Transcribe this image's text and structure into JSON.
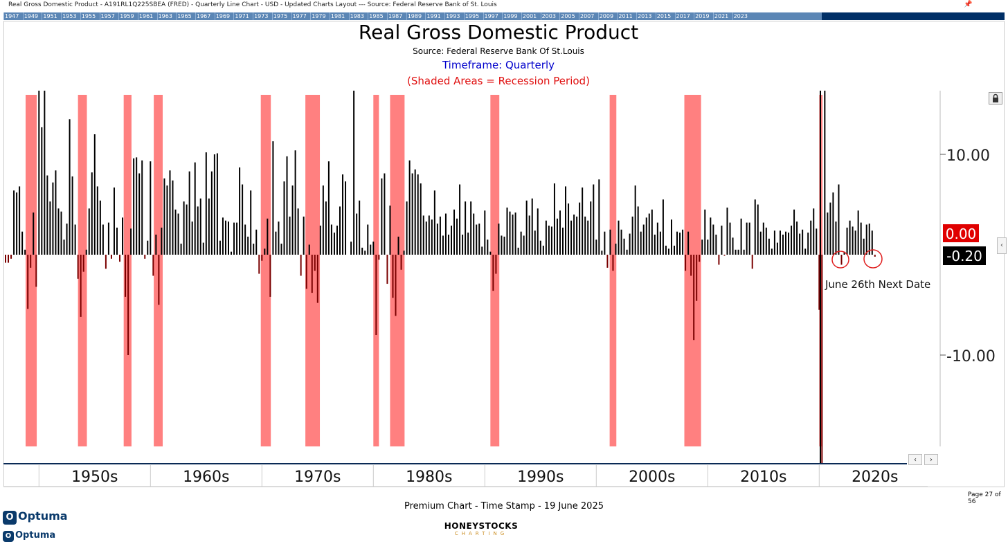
{
  "window": {
    "title": "Real Gross Domestic Product - A191RL1Q225SBEA (FRED) - Quarterly Line Chart - USD - Updated Charts Layout --- Source: Federal Reserve Bank of St. Louis",
    "year_strip": [
      "1947",
      "1949",
      "1951",
      "1953",
      "1955",
      "1957",
      "1959",
      "1961",
      "1963",
      "1965",
      "1967",
      "1969",
      "1971",
      "1973",
      "1975",
      "1977",
      "1979",
      "1981",
      "1983",
      "1985",
      "1987",
      "1989",
      "1991",
      "1993",
      "1995",
      "1997",
      "1999",
      "2001",
      "2003",
      "2005",
      "2007",
      "2009",
      "2011",
      "2013",
      "2015",
      "2017",
      "2019",
      "2021",
      "2023"
    ]
  },
  "header": {
    "title": "Real Gross Domestic Product",
    "source": "Source: Federal Reserve Bank Of St.Louis",
    "timeframe": "Timeframe: Quarterly",
    "shaded_note": "(Shaded Areas = Recession Period)"
  },
  "colors": {
    "recession": "#ff8080",
    "positive_bar": "#000000",
    "negative_bar": "#7a0000",
    "zero_badge": "#e00000",
    "last_badge": "#000000",
    "timeframe_text": "#0000cc",
    "note_text": "#e01010"
  },
  "chart_data": {
    "type": "bar",
    "x_unit": "year",
    "xlim": [
      1947,
      2030
    ],
    "ylim": [
      -20,
      16
    ],
    "yticks": [
      10,
      -10
    ],
    "ytick_labels": [
      "10.00",
      "-10.00"
    ],
    "decade_labels": [
      "1950s",
      "1960s",
      "1970s",
      "1980s",
      "1990s",
      "2000s",
      "2010s",
      "2020s"
    ],
    "value_labels": {
      "zero": "0.00",
      "last": "-0.20"
    },
    "annotation": "June 26th Next Date",
    "recessions": [
      [
        1948.8,
        1949.8
      ],
      [
        1953.5,
        1954.3
      ],
      [
        1957.6,
        1958.3
      ],
      [
        1960.3,
        1961.1
      ],
      [
        1969.9,
        1970.8
      ],
      [
        1973.9,
        1975.2
      ],
      [
        1980.0,
        1980.5
      ],
      [
        1981.5,
        1982.8
      ],
      [
        1990.5,
        1991.3
      ],
      [
        2001.2,
        2001.8
      ],
      [
        2007.9,
        2009.4
      ],
      [
        2020.0,
        2020.3
      ]
    ],
    "bars": [
      [
        1947.0,
        -0.8
      ],
      [
        1947.25,
        -0.8
      ],
      [
        1947.5,
        -0.4
      ],
      [
        1947.75,
        6.4
      ],
      [
        1948.0,
        6.2
      ],
      [
        1948.25,
        6.8
      ],
      [
        1948.5,
        2.3
      ],
      [
        1948.75,
        0.5
      ],
      [
        1949.0,
        -5.4
      ],
      [
        1949.25,
        -1.3
      ],
      [
        1949.5,
        4.2
      ],
      [
        1949.75,
        -3.2
      ],
      [
        1950.0,
        16.7
      ],
      [
        1950.25,
        12.7
      ],
      [
        1950.5,
        16.4
      ],
      [
        1950.75,
        7.9
      ],
      [
        1951.0,
        5.3
      ],
      [
        1951.25,
        7.2
      ],
      [
        1951.5,
        8.4
      ],
      [
        1951.75,
        4.6
      ],
      [
        1952.0,
        4.3
      ],
      [
        1952.25,
        1.5
      ],
      [
        1952.5,
        3.1
      ],
      [
        1952.75,
        13.5
      ],
      [
        1953.0,
        7.8
      ],
      [
        1953.25,
        3.0
      ],
      [
        1953.5,
        -2.4
      ],
      [
        1953.75,
        -6.2
      ],
      [
        1954.0,
        -1.7
      ],
      [
        1954.25,
        0.5
      ],
      [
        1954.5,
        4.6
      ],
      [
        1954.75,
        8.2
      ],
      [
        1955.0,
        12.0
      ],
      [
        1955.25,
        6.8
      ],
      [
        1955.5,
        5.4
      ],
      [
        1955.75,
        3.0
      ],
      [
        1956.0,
        -1.4
      ],
      [
        1956.25,
        3.2
      ],
      [
        1956.5,
        -0.4
      ],
      [
        1956.75,
        6.7
      ],
      [
        1957.0,
        2.7
      ],
      [
        1957.25,
        -0.7
      ],
      [
        1957.5,
        3.7
      ],
      [
        1957.75,
        -4.2
      ],
      [
        1958.0,
        -10.0
      ],
      [
        1958.25,
        2.6
      ],
      [
        1958.5,
        9.6
      ],
      [
        1958.75,
        9.7
      ],
      [
        1959.0,
        8.1
      ],
      [
        1959.25,
        9.4
      ],
      [
        1959.5,
        -0.4
      ],
      [
        1959.75,
        1.4
      ],
      [
        1960.0,
        9.3
      ],
      [
        1960.25,
        -2.1
      ],
      [
        1960.5,
        2.0
      ],
      [
        1960.75,
        -5.0
      ],
      [
        1961.0,
        2.7
      ],
      [
        1961.25,
        7.6
      ],
      [
        1961.5,
        6.9
      ],
      [
        1961.75,
        8.4
      ],
      [
        1962.0,
        7.4
      ],
      [
        1962.25,
        4.5
      ],
      [
        1962.5,
        4.1
      ],
      [
        1962.75,
        1.1
      ],
      [
        1963.0,
        5.3
      ],
      [
        1963.25,
        5.0
      ],
      [
        1963.5,
        8.3
      ],
      [
        1963.75,
        3.3
      ],
      [
        1964.0,
        9.2
      ],
      [
        1964.25,
        4.8
      ],
      [
        1964.5,
        5.6
      ],
      [
        1964.75,
        1.2
      ],
      [
        1965.0,
        10.2
      ],
      [
        1965.25,
        5.6
      ],
      [
        1965.5,
        8.3
      ],
      [
        1965.75,
        10.0
      ],
      [
        1966.0,
        10.1
      ],
      [
        1966.25,
        1.4
      ],
      [
        1966.5,
        3.7
      ],
      [
        1966.75,
        3.4
      ],
      [
        1967.0,
        3.3
      ],
      [
        1967.25,
        0.3
      ],
      [
        1967.5,
        3.2
      ],
      [
        1967.75,
        3.2
      ],
      [
        1968.0,
        8.7
      ],
      [
        1968.25,
        7.0
      ],
      [
        1968.5,
        3.0
      ],
      [
        1968.75,
        1.8
      ],
      [
        1969.0,
        6.4
      ],
      [
        1969.25,
        1.1
      ],
      [
        1969.5,
        2.5
      ],
      [
        1969.75,
        -1.9
      ],
      [
        1970.0,
        -0.6
      ],
      [
        1970.25,
        0.6
      ],
      [
        1970.5,
        3.6
      ],
      [
        1970.75,
        -4.2
      ],
      [
        1971.0,
        11.3
      ],
      [
        1971.25,
        2.3
      ],
      [
        1971.5,
        3.3
      ],
      [
        1971.75,
        1.1
      ],
      [
        1972.0,
        7.3
      ],
      [
        1972.25,
        9.8
      ],
      [
        1972.5,
        3.8
      ],
      [
        1972.75,
        6.9
      ],
      [
        1973.0,
        10.4
      ],
      [
        1973.25,
        4.6
      ],
      [
        1973.5,
        -2.1
      ],
      [
        1973.75,
        3.8
      ],
      [
        1974.0,
        -3.4
      ],
      [
        1974.25,
        1.0
      ],
      [
        1974.5,
        -3.8
      ],
      [
        1974.75,
        -1.6
      ],
      [
        1975.0,
        -4.8
      ],
      [
        1975.25,
        2.9
      ],
      [
        1975.5,
        6.9
      ],
      [
        1975.75,
        5.3
      ],
      [
        1976.0,
        9.3
      ],
      [
        1976.25,
        3.0
      ],
      [
        1976.5,
        2.2
      ],
      [
        1976.75,
        2.9
      ],
      [
        1977.0,
        4.8
      ],
      [
        1977.25,
        8.0
      ],
      [
        1977.5,
        7.3
      ],
      [
        1977.75,
        0.0
      ],
      [
        1978.0,
        1.3
      ],
      [
        1978.25,
        16.4
      ],
      [
        1978.5,
        4.1
      ],
      [
        1978.75,
        5.4
      ],
      [
        1979.0,
        0.7
      ],
      [
        1979.25,
        0.4
      ],
      [
        1979.5,
        3.0
      ],
      [
        1979.75,
        1.0
      ],
      [
        1980.0,
        1.3
      ],
      [
        1980.25,
        -8.0
      ],
      [
        1980.5,
        -0.5
      ],
      [
        1980.75,
        7.6
      ],
      [
        1981.0,
        8.1
      ],
      [
        1981.25,
        -2.9
      ],
      [
        1981.5,
        4.9
      ],
      [
        1981.75,
        -4.3
      ],
      [
        1982.0,
        -6.1
      ],
      [
        1982.25,
        1.8
      ],
      [
        1982.5,
        -1.5
      ],
      [
        1982.75,
        0.4
      ],
      [
        1983.0,
        5.3
      ],
      [
        1983.25,
        9.4
      ],
      [
        1983.5,
        8.1
      ],
      [
        1983.75,
        8.5
      ],
      [
        1984.0,
        8.0
      ],
      [
        1984.25,
        7.1
      ],
      [
        1984.5,
        3.9
      ],
      [
        1984.75,
        3.3
      ],
      [
        1985.0,
        3.9
      ],
      [
        1985.25,
        3.5
      ],
      [
        1985.5,
        6.4
      ],
      [
        1985.75,
        3.1
      ],
      [
        1986.0,
        3.8
      ],
      [
        1986.25,
        1.9
      ],
      [
        1986.5,
        4.1
      ],
      [
        1986.75,
        2.0
      ],
      [
        1987.0,
        2.9
      ],
      [
        1987.25,
        4.5
      ],
      [
        1987.5,
        3.6
      ],
      [
        1987.75,
        7.0
      ],
      [
        1988.0,
        2.0
      ],
      [
        1988.25,
        5.3
      ],
      [
        1988.5,
        2.2
      ],
      [
        1988.75,
        5.3
      ],
      [
        1989.0,
        4.1
      ],
      [
        1989.25,
        3.0
      ],
      [
        1989.5,
        3.1
      ],
      [
        1989.75,
        0.8
      ],
      [
        1990.0,
        4.4
      ],
      [
        1990.25,
        1.5
      ],
      [
        1990.5,
        0.3
      ],
      [
        1990.75,
        -3.6
      ],
      [
        1991.0,
        -1.9
      ],
      [
        1991.25,
        3.1
      ],
      [
        1991.5,
        1.9
      ],
      [
        1991.75,
        1.8
      ],
      [
        1992.0,
        4.7
      ],
      [
        1992.25,
        4.3
      ],
      [
        1992.5,
        4.0
      ],
      [
        1992.75,
        4.2
      ],
      [
        1993.0,
        0.7
      ],
      [
        1993.25,
        2.3
      ],
      [
        1993.5,
        1.9
      ],
      [
        1993.75,
        5.4
      ],
      [
        1994.0,
        3.9
      ],
      [
        1994.25,
        5.6
      ],
      [
        1994.5,
        2.4
      ],
      [
        1994.75,
        4.6
      ],
      [
        1995.0,
        1.4
      ],
      [
        1995.25,
        0.9
      ],
      [
        1995.5,
        3.4
      ],
      [
        1995.75,
        2.9
      ],
      [
        1996.0,
        2.8
      ],
      [
        1996.25,
        7.1
      ],
      [
        1996.5,
        3.6
      ],
      [
        1996.75,
        4.4
      ],
      [
        1997.0,
        2.7
      ],
      [
        1997.25,
        6.8
      ],
      [
        1997.5,
        5.1
      ],
      [
        1997.75,
        3.4
      ],
      [
        1998.0,
        4.0
      ],
      [
        1998.25,
        3.8
      ],
      [
        1998.5,
        5.2
      ],
      [
        1998.75,
        6.7
      ],
      [
        1999.0,
        3.8
      ],
      [
        1999.25,
        3.4
      ],
      [
        1999.5,
        5.3
      ],
      [
        1999.75,
        7.0
      ],
      [
        2000.0,
        1.5
      ],
      [
        2000.25,
        7.5
      ],
      [
        2000.5,
        0.4
      ],
      [
        2000.75,
        2.3
      ],
      [
        2001.0,
        -1.3
      ],
      [
        2001.25,
        2.5
      ],
      [
        2001.5,
        -1.6
      ],
      [
        2001.75,
        1.1
      ],
      [
        2002.0,
        3.4
      ],
      [
        2002.25,
        2.5
      ],
      [
        2002.5,
        1.6
      ],
      [
        2002.75,
        0.5
      ],
      [
        2003.0,
        2.1
      ],
      [
        2003.25,
        3.8
      ],
      [
        2003.5,
        6.9
      ],
      [
        2003.75,
        4.8
      ],
      [
        2004.0,
        2.3
      ],
      [
        2004.25,
        3.0
      ],
      [
        2004.5,
        3.7
      ],
      [
        2004.75,
        4.1
      ],
      [
        2005.0,
        4.5
      ],
      [
        2005.25,
        2.0
      ],
      [
        2005.5,
        3.2
      ],
      [
        2005.75,
        2.3
      ],
      [
        2006.0,
        5.5
      ],
      [
        2006.25,
        0.9
      ],
      [
        2006.5,
        0.6
      ],
      [
        2006.75,
        3.5
      ],
      [
        2007.0,
        0.9
      ],
      [
        2007.25,
        2.3
      ],
      [
        2007.5,
        2.2
      ],
      [
        2007.75,
        2.5
      ],
      [
        2008.0,
        -1.6
      ],
      [
        2008.25,
        2.3
      ],
      [
        2008.5,
        -2.1
      ],
      [
        2008.75,
        -8.5
      ],
      [
        2009.0,
        -4.6
      ],
      [
        2009.25,
        -0.7
      ],
      [
        2009.5,
        1.5
      ],
      [
        2009.75,
        4.5
      ],
      [
        2010.0,
        1.5
      ],
      [
        2010.25,
        3.7
      ],
      [
        2010.5,
        3.0
      ],
      [
        2010.75,
        2.0
      ],
      [
        2011.0,
        -1.0
      ],
      [
        2011.25,
        2.9
      ],
      [
        2011.5,
        -0.1
      ],
      [
        2011.75,
        4.7
      ],
      [
        2012.0,
        3.2
      ],
      [
        2012.25,
        1.7
      ],
      [
        2012.5,
        0.5
      ],
      [
        2012.75,
        0.5
      ],
      [
        2013.0,
        3.6
      ],
      [
        2013.25,
        0.5
      ],
      [
        2013.5,
        3.2
      ],
      [
        2013.75,
        3.2
      ],
      [
        2014.0,
        -1.4
      ],
      [
        2014.25,
        5.5
      ],
      [
        2014.5,
        5.0
      ],
      [
        2014.75,
        2.3
      ],
      [
        2015.0,
        3.2
      ],
      [
        2015.25,
        2.7
      ],
      [
        2015.5,
        1.6
      ],
      [
        2015.75,
        0.6
      ],
      [
        2016.0,
        2.4
      ],
      [
        2016.25,
        1.2
      ],
      [
        2016.5,
        2.4
      ],
      [
        2016.75,
        2.0
      ],
      [
        2017.0,
        2.3
      ],
      [
        2017.25,
        2.2
      ],
      [
        2017.5,
        2.9
      ],
      [
        2017.75,
        4.5
      ],
      [
        2018.0,
        3.3
      ],
      [
        2018.25,
        2.1
      ],
      [
        2018.5,
        2.5
      ],
      [
        2018.75,
        0.6
      ],
      [
        2019.0,
        2.2
      ],
      [
        2019.25,
        3.4
      ],
      [
        2019.5,
        4.6
      ],
      [
        2019.75,
        2.6
      ],
      [
        2020.0,
        -5.5
      ],
      [
        2020.25,
        -28.0
      ],
      [
        2020.5,
        16.5
      ],
      [
        2020.75,
        4.2
      ],
      [
        2021.0,
        5.2
      ],
      [
        2021.25,
        6.2
      ],
      [
        2021.5,
        3.3
      ],
      [
        2021.75,
        7.0
      ],
      [
        2022.0,
        -1.0
      ],
      [
        2022.25,
        0.3
      ],
      [
        2022.5,
        2.7
      ],
      [
        2022.75,
        3.4
      ],
      [
        2023.0,
        2.8
      ],
      [
        2023.25,
        2.4
      ],
      [
        2023.5,
        4.4
      ],
      [
        2023.75,
        3.2
      ],
      [
        2024.0,
        1.6
      ],
      [
        2024.25,
        3.0
      ],
      [
        2024.5,
        3.1
      ],
      [
        2024.75,
        2.4
      ],
      [
        2025.0,
        -0.2
      ]
    ]
  },
  "footer": {
    "page": "Page 27 of 56",
    "stamp": "Premium Chart - Time Stamp - 19 June 2025",
    "logo_optuma": "Optuma",
    "logo_ohs_top": "HONEYSTOCKS",
    "logo_ohs_bottom": "CHARTING"
  },
  "controls": {
    "scroll_left": "‹",
    "scroll_right": "›",
    "side_arrow": "‹"
  }
}
